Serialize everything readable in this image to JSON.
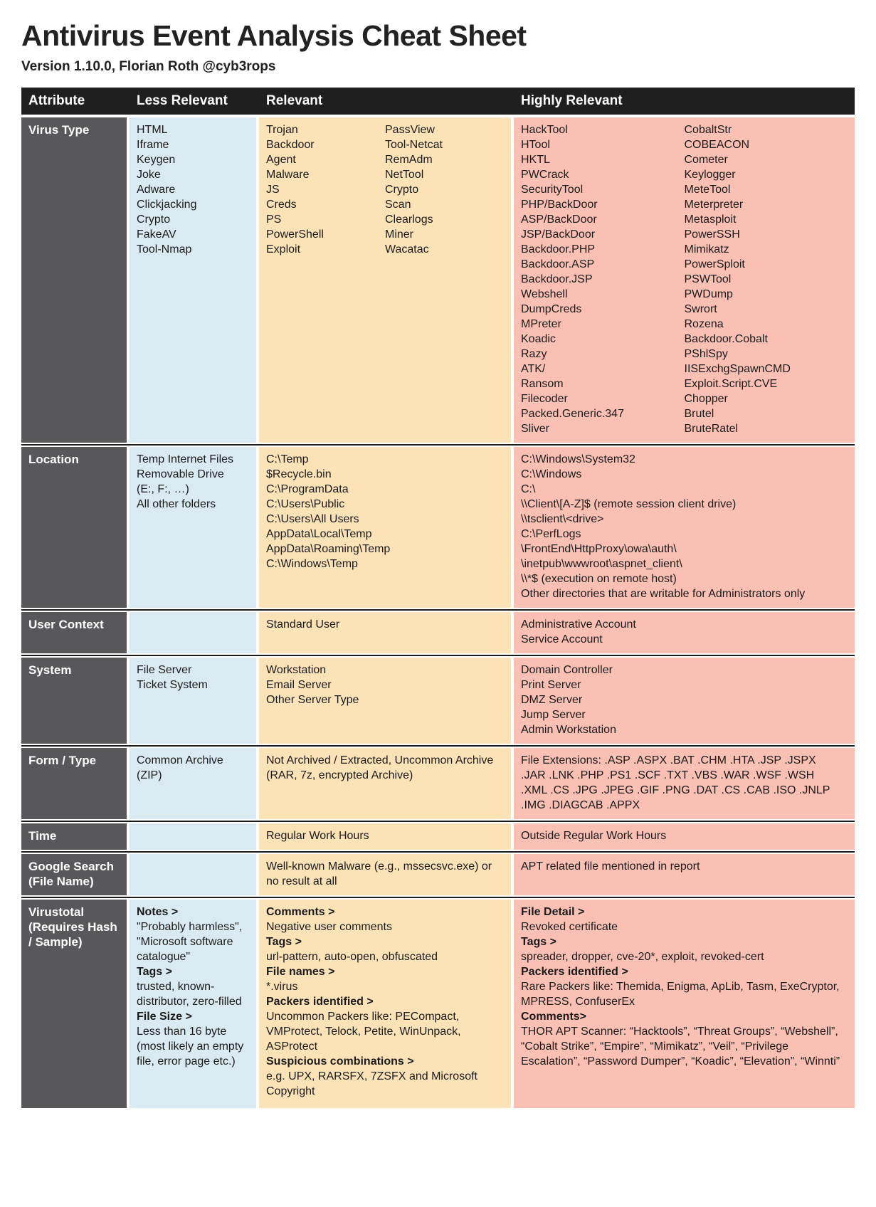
{
  "page": {
    "title": "Antivirus Event Analysis Cheat Sheet",
    "subtitle": "Version 1.10.0, Florian Roth @cyb3rops"
  },
  "colors": {
    "header_bg": "#1f1f1f",
    "attribute_bg": "#58585a",
    "less_relevant_bg": "#d9eaf2",
    "relevant_bg": "#fce2b7",
    "highly_relevant_bg": "#fac0b3",
    "separator": "#1c1c1c",
    "text": "#1a1a1a"
  },
  "table": {
    "headers": [
      "Attribute",
      "Less Relevant",
      "Relevant",
      "Highly Relevant"
    ],
    "rows": [
      {
        "id": "virus-type",
        "attribute": "Virus Type",
        "less": {
          "cols": [
            [
              "HTML",
              "Iframe",
              "Keygen",
              "Joke",
              "Adware",
              "Clickjacking",
              "Crypto",
              "FakeAV",
              "Tool-Nmap"
            ]
          ]
        },
        "relevant": {
          "cols": [
            [
              "Trojan",
              "Backdoor",
              "Agent",
              "Malware",
              "JS",
              "Creds",
              "PS",
              "PowerShell",
              "Exploit"
            ],
            [
              "PassView",
              "Tool-Netcat",
              "RemAdm",
              "NetTool",
              "Crypto",
              "Scan",
              "Clearlogs",
              "Miner",
              "Wacatac"
            ]
          ]
        },
        "highly": {
          "cols": [
            [
              "HackTool",
              "HTool",
              "HKTL",
              "PWCrack",
              "SecurityTool",
              "PHP/BackDoor",
              "ASP/BackDoor",
              "JSP/BackDoor",
              "Backdoor.PHP",
              "Backdoor.ASP",
              "Backdoor.JSP",
              "Webshell",
              "DumpCreds",
              "MPreter",
              "Koadic",
              "Razy",
              "ATK/",
              "Ransom",
              "Filecoder",
              "Packed.Generic.347",
              "Sliver"
            ],
            [
              "CobaltStr",
              "COBEACON",
              "Cometer",
              "Keylogger",
              "MeteTool",
              "Meterpreter",
              "Metasploit",
              "PowerSSH",
              "Mimikatz",
              "PowerSploit",
              "PSWTool",
              "PWDump",
              "Swrort",
              "Rozena",
              "Backdoor.Cobalt",
              "PShlSpy",
              "IISExchgSpawnCMD",
              "Exploit.Script.CVE",
              "Chopper",
              "Brutel",
              "BruteRatel"
            ]
          ]
        }
      },
      {
        "id": "location",
        "attribute": "Location",
        "less": {
          "cols": [
            [
              "Temp Internet Files",
              "Removable Drive",
              "(E:, F:, …)",
              "All other folders"
            ]
          ]
        },
        "relevant": {
          "cols": [
            [
              "C:\\Temp",
              "$Recycle.bin",
              "C:\\ProgramData",
              "C:\\Users\\Public",
              "C:\\Users\\All Users",
              "AppData\\Local\\Temp",
              "AppData\\Roaming\\Temp",
              "C:\\Windows\\Temp"
            ]
          ]
        },
        "highly": {
          "cols": [
            [
              "C:\\Windows\\System32",
              "C:\\Windows",
              "C:\\",
              "\\\\Client\\[A-Z]$ (remote session client drive)",
              "\\\\tsclient\\<drive>",
              "C:\\PerfLogs",
              "\\FrontEnd\\HttpProxy\\owa\\auth\\",
              "\\inetpub\\wwwroot\\aspnet_client\\",
              "\\\\*$ (execution on remote host)",
              "Other directories that are writable for Administrators only"
            ]
          ]
        }
      },
      {
        "id": "user-context",
        "attribute": "User Context",
        "less": {
          "cols": [
            []
          ]
        },
        "relevant": {
          "cols": [
            [
              "Standard User"
            ]
          ]
        },
        "highly": {
          "cols": [
            [
              "Administrative Account",
              "Service Account"
            ]
          ]
        }
      },
      {
        "id": "system",
        "attribute": "System",
        "less": {
          "cols": [
            [
              "File Server",
              "Ticket System"
            ]
          ]
        },
        "relevant": {
          "cols": [
            [
              "Workstation",
              "Email Server",
              "Other Server Type"
            ]
          ]
        },
        "highly": {
          "cols": [
            [
              "Domain Controller",
              "Print Server",
              "DMZ Server",
              "Jump Server",
              "Admin Workstation"
            ]
          ]
        }
      },
      {
        "id": "form-type",
        "attribute": "Form / Type",
        "less": {
          "cols": [
            [
              "Common Archive (ZIP)"
            ]
          ]
        },
        "relevant": {
          "cols": [
            [
              "Not Archived / Extracted, Uncommon Archive (RAR, 7z, encrypted Archive)"
            ]
          ]
        },
        "highly": {
          "cols": [
            [
              "File Extensions: .ASP .ASPX .BAT .CHM .HTA .JSP .JSPX .JAR .LNK .PHP .PS1 .SCF .TXT .VBS .WAR .WSF .WSH .XML .CS .JPG .JPEG .GIF .PNG .DAT .CS .CAB .ISO .JNLP .IMG .DIAGCAB .APPX"
            ]
          ]
        }
      },
      {
        "id": "time",
        "attribute": "Time",
        "less": {
          "cols": [
            []
          ]
        },
        "relevant": {
          "cols": [
            [
              "Regular Work Hours"
            ]
          ]
        },
        "highly": {
          "cols": [
            [
              "Outside Regular Work Hours"
            ]
          ]
        }
      },
      {
        "id": "google-search",
        "attribute": "Google Search (File Name)",
        "less": {
          "cols": [
            []
          ]
        },
        "relevant": {
          "cols": [
            [
              "Well-known Malware (e.g., mssecsvc.exe) or no result at all"
            ]
          ]
        },
        "highly": {
          "cols": [
            [
              "APT related file mentioned in report"
            ]
          ]
        }
      },
      {
        "id": "virustotal",
        "attribute": "Virustotal (Requires Hash / Sample)",
        "less": {
          "cols": [
            [
              {
                "text": "Notes >",
                "bold": true
              },
              "\"Probably harmless\",",
              "\"Microsoft software catalogue\"",
              {
                "text": "Tags >",
                "bold": true
              },
              "trusted, known-distributor, zero-filled",
              {
                "text": "File Size >",
                "bold": true
              },
              "Less than 16 byte (most likely an empty file, error page etc.)"
            ]
          ]
        },
        "relevant": {
          "cols": [
            [
              {
                "text": "Comments >",
                "bold": true
              },
              "Negative user comments",
              {
                "text": "Tags >",
                "bold": true
              },
              "url-pattern, auto-open, obfuscated",
              {
                "text": "File names >",
                "bold": true
              },
              "*.virus",
              {
                "text": "Packers identified >",
                "bold": true
              },
              "Uncommon Packers like: PECompact, VMProtect, Telock, Petite, WinUnpack, ASProtect",
              {
                "text": "Suspicious combinations >",
                "bold": true
              },
              "e.g. UPX, RARSFX, 7ZSFX and Microsoft Copyright"
            ]
          ]
        },
        "highly": {
          "cols": [
            [
              {
                "text": "File Detail >",
                "bold": true
              },
              "Revoked certificate",
              {
                "text": "Tags >",
                "bold": true
              },
              "spreader, dropper, cve-20*, exploit, revoked-cert",
              {
                "text": "Packers identified >",
                "bold": true
              },
              "Rare Packers like: Themida, Enigma, ApLib, Tasm, ExeCryptor, MPRESS, ConfuserEx",
              {
                "text": "Comments>",
                "bold": true
              },
              "THOR APT Scanner: “Hacktools”, “Threat Groups”, “Webshell”, “Cobalt Strike”, “Empire”, “Mimikatz”, “Veil”, “Privilege Escalation”, “Password Dumper”, “Koadic”, “Elevation”, “Winnti”"
            ]
          ]
        }
      }
    ]
  }
}
